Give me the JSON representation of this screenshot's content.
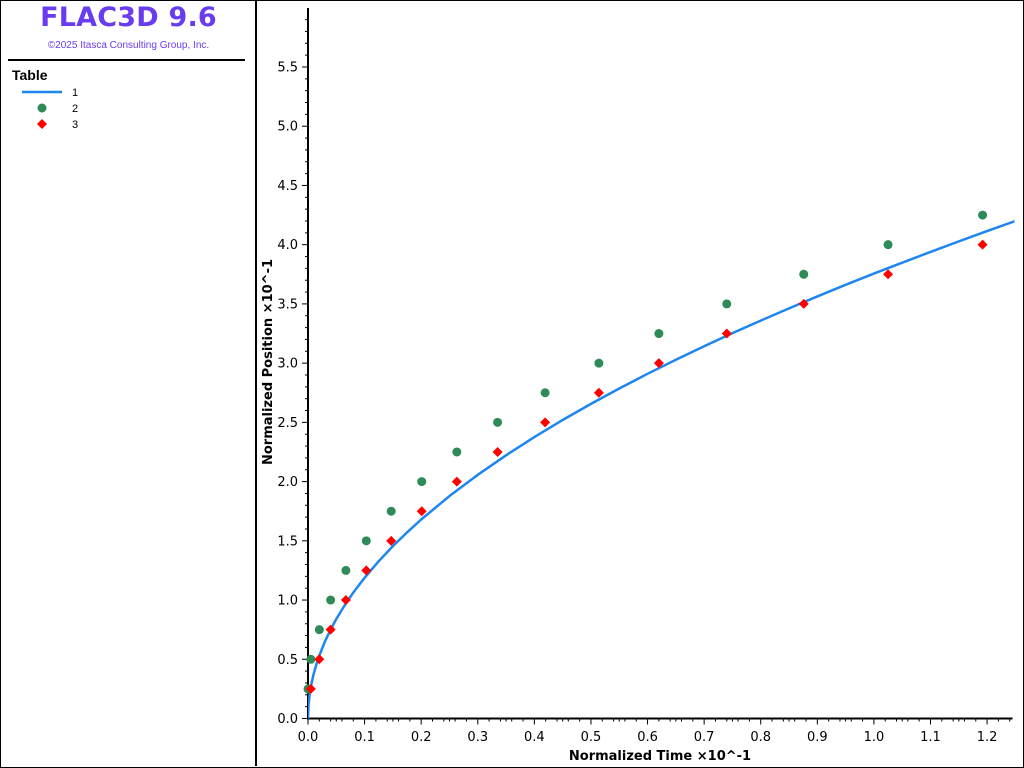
{
  "app": {
    "title": "FLAC3D 9.6",
    "copyright": "©2025 Itasca Consulting Group, Inc."
  },
  "legend": {
    "title": "Table",
    "items": [
      {
        "label": "1",
        "marker": "line",
        "color": "#1e86f0"
      },
      {
        "label": "2",
        "marker": "circle",
        "color": "#2e8b57"
      },
      {
        "label": "3",
        "marker": "diamond",
        "color": "#ff0000"
      }
    ]
  },
  "chart_data": {
    "type": "scatter",
    "xlabel": "Normalized Time ×10^-1",
    "ylabel": "Normalized Position ×10^-1",
    "xlim": [
      0,
      1.25
    ],
    "ylim": [
      0,
      6
    ],
    "x_ticks": [
      "0.0",
      "0.1",
      "0.2",
      "0.3",
      "0.4",
      "0.5",
      "0.6",
      "0.7",
      "0.8",
      "0.9",
      "1.0",
      "1.1",
      "1.2"
    ],
    "y_ticks": [
      "0.0",
      "0.5",
      "1.0",
      "1.5",
      "2.0",
      "2.5",
      "3.0",
      "3.5",
      "4.0",
      "4.5",
      "5.0",
      "5.5"
    ],
    "grid": false,
    "series": [
      {
        "name": "1",
        "style": "line",
        "color": "#1e86f0",
        "x": [
          0,
          0.001,
          0.003,
          0.006,
          0.01,
          0.015,
          0.02,
          0.03,
          0.04,
          0.05,
          0.065,
          0.08,
          0.1,
          0.125,
          0.15,
          0.175,
          0.2,
          0.25,
          0.3,
          0.35,
          0.4,
          0.45,
          0.5,
          0.55,
          0.6,
          0.65,
          0.7,
          0.75,
          0.8,
          0.85,
          0.9,
          0.95,
          1.0,
          1.05,
          1.1,
          1.15,
          1.2,
          1.25
        ],
        "y": [
          0,
          0.119,
          0.206,
          0.291,
          0.376,
          0.46,
          0.531,
          0.651,
          0.751,
          0.84,
          0.957,
          1.063,
          1.188,
          1.328,
          1.455,
          1.571,
          1.68,
          1.878,
          2.057,
          2.222,
          2.376,
          2.52,
          2.656,
          2.786,
          2.91,
          3.029,
          3.143,
          3.253,
          3.359,
          3.462,
          3.563,
          3.661,
          3.756,
          3.848,
          3.939,
          4.028,
          4.115,
          4.2
        ]
      },
      {
        "name": "2",
        "style": "circle",
        "color": "#2e8b57",
        "x": [
          0.0,
          0.005,
          0.02,
          0.04,
          0.067,
          0.103,
          0.147,
          0.201,
          0.263,
          0.335,
          0.419,
          0.514,
          0.62,
          0.74,
          0.876,
          1.025,
          1.192
        ],
        "y": [
          0.25,
          0.5,
          0.75,
          1.0,
          1.25,
          1.5,
          1.75,
          2.0,
          2.25,
          2.5,
          2.75,
          3.0,
          3.25,
          3.5,
          3.75,
          4.0,
          4.25
        ]
      },
      {
        "name": "3",
        "style": "diamond",
        "color": "#ff0000",
        "x": [
          0.005,
          0.02,
          0.04,
          0.067,
          0.103,
          0.147,
          0.201,
          0.263,
          0.335,
          0.419,
          0.514,
          0.62,
          0.74,
          0.876,
          1.025,
          1.192
        ],
        "y": [
          0.25,
          0.5,
          0.75,
          1.0,
          1.25,
          1.5,
          1.75,
          2.0,
          2.25,
          2.5,
          2.75,
          3.0,
          3.25,
          3.5,
          3.75,
          4.0
        ]
      }
    ]
  }
}
